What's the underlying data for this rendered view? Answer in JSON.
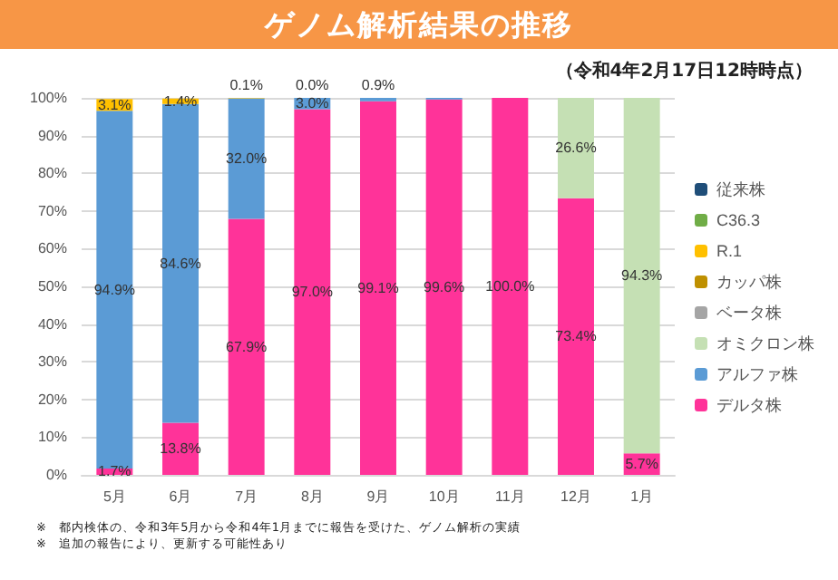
{
  "chart_data": {
    "type": "bar",
    "stacked": true,
    "title": "ゲノム解析結果の推移",
    "subtitle": "（令和4年2月17日12時時点）",
    "categories": [
      "5月",
      "6月",
      "7月",
      "8月",
      "9月",
      "10月",
      "11月",
      "12月",
      "1月"
    ],
    "series": [
      {
        "name": "デルタ株",
        "color": "#ff3399",
        "values": [
          1.7,
          13.8,
          67.9,
          97.0,
          99.1,
          99.6,
          100.0,
          73.4,
          5.7
        ],
        "value_labels": [
          "1.7%",
          "13.8%",
          "67.9%",
          "97.0%",
          "99.1%",
          "99.6%",
          "100.0%",
          "73.4%",
          "5.7%"
        ]
      },
      {
        "name": "アルファ株",
        "color": "#5b9bd5",
        "values": [
          94.9,
          84.6,
          32.0,
          3.0,
          0.9,
          0.4,
          null,
          null,
          null
        ],
        "value_labels": [
          "94.9%",
          "84.6%",
          "32.0%",
          "3.0%",
          "0.9%",
          null,
          null,
          null,
          null
        ]
      },
      {
        "name": "オミクロン株",
        "color": "#c5e0b4",
        "values": [
          null,
          null,
          null,
          null,
          null,
          null,
          null,
          26.6,
          94.3
        ],
        "value_labels": [
          null,
          null,
          null,
          null,
          null,
          null,
          null,
          "26.6%",
          "94.3%"
        ]
      },
      {
        "name": "ベータ株",
        "color": "#a5a5a5",
        "values": [
          null,
          null,
          null,
          null,
          null,
          null,
          null,
          null,
          null
        ]
      },
      {
        "name": "カッパ株",
        "color": "#bf9000",
        "values": [
          null,
          null,
          null,
          null,
          null,
          null,
          null,
          null,
          null
        ]
      },
      {
        "name": "R.1",
        "color": "#ffc000",
        "values": [
          3.1,
          1.4,
          0.1,
          0.0,
          null,
          null,
          null,
          null,
          null
        ],
        "value_labels": [
          "3.1%",
          "1.4%",
          "0.1%",
          "0.0%",
          null,
          null,
          null,
          null,
          null
        ]
      },
      {
        "name": "C36.3",
        "color": "#70ad47",
        "values": [
          null,
          null,
          null,
          null,
          null,
          null,
          null,
          null,
          null
        ]
      },
      {
        "name": "従来株",
        "color": "#1f4e79",
        "values": [
          null,
          null,
          null,
          null,
          null,
          null,
          null,
          null,
          null
        ]
      }
    ],
    "ylim": [
      0,
      100
    ],
    "yticks": [
      {
        "value": 0,
        "label": "0%"
      },
      {
        "value": 10,
        "label": "10%"
      },
      {
        "value": 20,
        "label": "20%"
      },
      {
        "value": 30,
        "label": "30%"
      },
      {
        "value": 40,
        "label": "40%"
      },
      {
        "value": 50,
        "label": "50%"
      },
      {
        "value": 60,
        "label": "60%"
      },
      {
        "value": 70,
        "label": "70%"
      },
      {
        "value": 80,
        "label": "80%"
      },
      {
        "value": 90,
        "label": "90%"
      },
      {
        "value": 100,
        "label": "100%"
      }
    ],
    "grid": "y",
    "legend": "right",
    "annotations": [
      "※　都内検体の、令和3年5月から令和4年1月までに報告を受けた、ゲノム解析の実績",
      "※　追加の報告により、更新する可能性あり"
    ]
  }
}
